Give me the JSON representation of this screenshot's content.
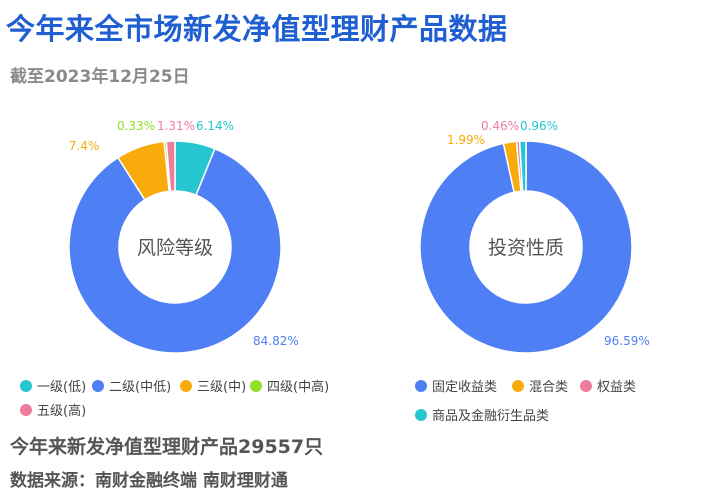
{
  "header": {
    "title": "今年来全市场新发净值型理财产品数据",
    "subtitle": "截至2023年12月25日"
  },
  "footer": {
    "total": "今年来新发净值型理财产品29557只",
    "source": "数据来源：南财金融终端 南财理财通"
  },
  "chart_data": [
    {
      "type": "pie",
      "subtype": "donut",
      "center_label": "风险等级",
      "legend_position": "bottom",
      "slices": [
        {
          "label": "一级(低)",
          "value": 6.14,
          "display": "6.14%",
          "color": "#26c6d0"
        },
        {
          "label": "二级(中低)",
          "value": 84.82,
          "display": "84.82%",
          "color": "#4f7ff5"
        },
        {
          "label": "三级(中)",
          "value": 7.4,
          "display": "7.4%",
          "color": "#f9ab0b"
        },
        {
          "label": "四级(中高)",
          "value": 0.33,
          "display": "0.33%",
          "color": "#8ee12a"
        },
        {
          "label": "五级(高)",
          "value": 1.31,
          "display": "1.31%",
          "color": "#ee7d9c"
        }
      ]
    },
    {
      "type": "pie",
      "subtype": "donut",
      "center_label": "投资性质",
      "legend_position": "bottom",
      "slices": [
        {
          "label": "固定收益类",
          "value": 96.59,
          "display": "96.59%",
          "color": "#4f7ff5"
        },
        {
          "label": "混合类",
          "value": 1.99,
          "display": "1.99%",
          "color": "#f9ab0b"
        },
        {
          "label": "权益类",
          "value": 0.46,
          "display": "0.46%",
          "color": "#ee7d9c"
        },
        {
          "label": "商品及金融衍生品类",
          "value": 0.96,
          "display": "0.96%",
          "color": "#26c6d0"
        }
      ]
    }
  ]
}
